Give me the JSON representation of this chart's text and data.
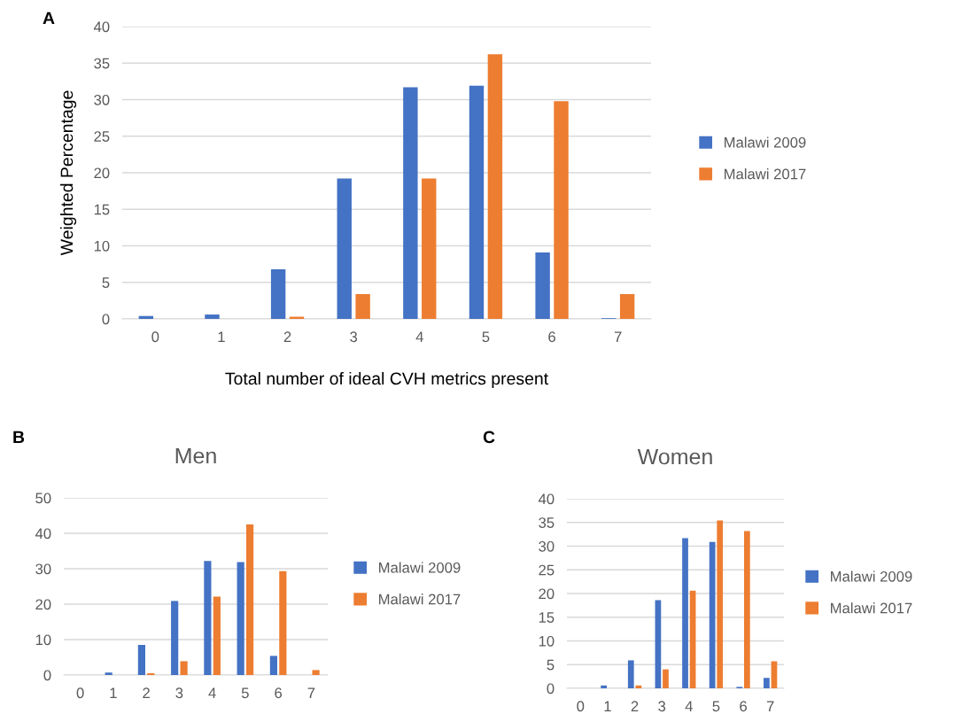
{
  "chart_data": [
    {
      "type": "bar",
      "annotations": [
        "A"
      ],
      "xlabel": "Total number of ideal CVH metrics present",
      "ylabel": "Weighted Percentage",
      "categories": [
        "0",
        "1",
        "2",
        "3",
        "4",
        "5",
        "6",
        "7"
      ],
      "ylim": [
        0,
        40
      ],
      "yticks": [
        0,
        5,
        10,
        15,
        20,
        25,
        30,
        35,
        40
      ],
      "grid": "y",
      "legend": "right",
      "series": [
        {
          "name": "Malawi 2009",
          "color": "#4472c4",
          "values": [
            0.4,
            0.6,
            6.8,
            19.2,
            31.7,
            31.9,
            9.1,
            0.1
          ]
        },
        {
          "name": "Malawi 2017",
          "color": "#ed7d31",
          "values": [
            0,
            0,
            0.3,
            3.4,
            19.2,
            36.2,
            29.8,
            3.4
          ]
        }
      ]
    },
    {
      "type": "bar",
      "annotations": [
        "B"
      ],
      "title": "Men",
      "categories": [
        "0",
        "1",
        "2",
        "3",
        "4",
        "5",
        "6",
        "7"
      ],
      "ylim": [
        0,
        50
      ],
      "yticks": [
        0,
        10,
        20,
        30,
        40,
        50
      ],
      "grid": "y",
      "legend": "right",
      "series": [
        {
          "name": "Malawi 2009",
          "color": "#4472c4",
          "values": [
            0,
            0.7,
            8.5,
            20.9,
            32.2,
            31.9,
            5.4,
            0
          ]
        },
        {
          "name": "Malawi 2017",
          "color": "#ed7d31",
          "values": [
            0,
            0,
            0.5,
            3.9,
            22.1,
            42.5,
            29.3,
            1.4
          ]
        }
      ]
    },
    {
      "type": "bar",
      "annotations": [
        "C"
      ],
      "title": "Women",
      "categories": [
        "0",
        "1",
        "2",
        "3",
        "4",
        "5",
        "6",
        "7"
      ],
      "ylim": [
        0,
        40
      ],
      "yticks": [
        0,
        5,
        10,
        15,
        20,
        25,
        30,
        35,
        40
      ],
      "grid": "y",
      "legend": "right",
      "series": [
        {
          "name": "Malawi 2009",
          "color": "#4472c4",
          "values": [
            0,
            0.6,
            5.9,
            18.6,
            31.7,
            30.9,
            0.3,
            2.2
          ]
        },
        {
          "name": "Malawi 2017",
          "color": "#ed7d31",
          "values": [
            0,
            0,
            0.6,
            4.0,
            20.6,
            35.4,
            33.2,
            5.7
          ]
        }
      ]
    }
  ]
}
